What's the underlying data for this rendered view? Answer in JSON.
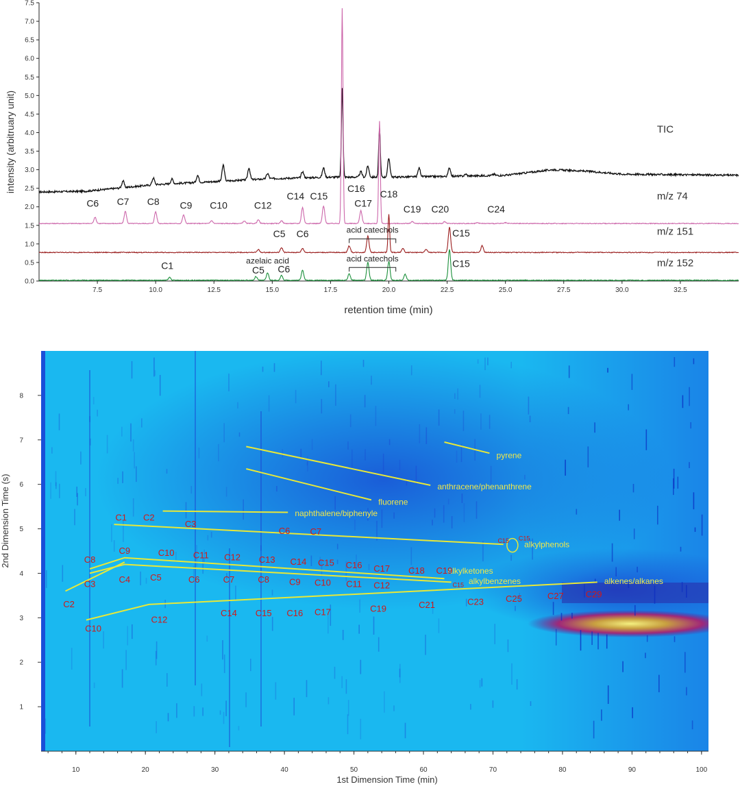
{
  "chart_data": [
    {
      "type": "line",
      "xlabel": "retention time (min)",
      "ylabel": "intensity (arbitruary unit)",
      "xlim": [
        5.0,
        35.0
      ],
      "ylim": [
        0.0,
        7.5
      ],
      "x_ticks": [
        "7.5",
        "10.0",
        "12.5",
        "15.0",
        "17.5",
        "20.0",
        "22.5",
        "25.0",
        "27.5",
        "30.0",
        "32.5"
      ],
      "x_tick_values": [
        7.5,
        10.0,
        12.5,
        15.0,
        17.5,
        20.0,
        22.5,
        25.0,
        27.5,
        30.0,
        32.5
      ],
      "y_ticks": [
        "0.0",
        "0.5",
        "1.0",
        "1.5",
        "2.0",
        "2.5",
        "3.0",
        "3.5",
        "4.0",
        "4.5",
        "5.0",
        "5.5",
        "6.0",
        "6.5",
        "7.0",
        "7.5"
      ],
      "y_tick_values": [
        0.0,
        0.5,
        1.0,
        1.5,
        2.0,
        2.5,
        3.0,
        3.5,
        4.0,
        4.5,
        5.0,
        5.5,
        6.0,
        6.5,
        7.0,
        7.5
      ],
      "grid": false,
      "series": [
        {
          "name": "TIC",
          "color": "#111111",
          "baseline": [
            [
              5.0,
              2.4
            ],
            [
              7.0,
              2.42
            ],
            [
              10.0,
              2.6
            ],
            [
              12.5,
              2.68
            ],
            [
              15.0,
              2.76
            ],
            [
              17.5,
              2.8
            ],
            [
              20.0,
              2.8
            ],
            [
              22.5,
              2.82
            ],
            [
              25.0,
              2.85
            ],
            [
              27.0,
              3.0
            ],
            [
              28.5,
              2.96
            ],
            [
              30.0,
              2.88
            ],
            [
              35.0,
              2.85
            ]
          ],
          "peaks": [
            [
              8.6,
              2.7
            ],
            [
              9.9,
              2.78
            ],
            [
              10.7,
              2.75
            ],
            [
              11.8,
              2.85
            ],
            [
              12.9,
              3.13
            ],
            [
              14.0,
              3.05
            ],
            [
              14.8,
              2.9
            ],
            [
              16.3,
              2.95
            ],
            [
              17.2,
              3.05
            ],
            [
              18.0,
              5.22
            ],
            [
              18.8,
              2.95
            ],
            [
              19.1,
              3.1
            ],
            [
              19.6,
              4.12
            ],
            [
              20.0,
              3.3
            ],
            [
              21.3,
              3.05
            ],
            [
              22.6,
              3.05
            ],
            [
              23.3,
              2.88
            ],
            [
              24.5,
              2.88
            ]
          ]
        },
        {
          "name": "m/z 74",
          "color": "#cc66aa",
          "baseline": [
            [
              5.0,
              1.55
            ],
            [
              35.0,
              1.55
            ]
          ],
          "peaks": [
            [
              7.4,
              1.72
            ],
            [
              8.7,
              1.88
            ],
            [
              10.0,
              1.87
            ],
            [
              11.2,
              1.78
            ],
            [
              12.4,
              1.63
            ],
            [
              13.8,
              1.62
            ],
            [
              14.4,
              1.65
            ],
            [
              15.4,
              1.63
            ],
            [
              16.3,
              1.98
            ],
            [
              17.2,
              2.02
            ],
            [
              18.0,
              7.35
            ],
            [
              18.8,
              1.9
            ],
            [
              19.6,
              4.32
            ],
            [
              21.0,
              1.6
            ],
            [
              22.4,
              1.6
            ],
            [
              23.8,
              1.58
            ],
            [
              25.0,
              1.57
            ]
          ]
        },
        {
          "name": "m/z 151",
          "color": "#991b1b",
          "baseline": [
            [
              5.0,
              0.77
            ],
            [
              35.0,
              0.77
            ]
          ],
          "peaks": [
            [
              14.4,
              0.85
            ],
            [
              15.4,
              0.9
            ],
            [
              16.3,
              0.88
            ],
            [
              18.3,
              0.95
            ],
            [
              19.1,
              1.22
            ],
            [
              20.0,
              1.8
            ],
            [
              20.6,
              0.88
            ],
            [
              21.6,
              0.85
            ],
            [
              22.6,
              1.45
            ],
            [
              24.0,
              0.95
            ]
          ]
        },
        {
          "name": "m/z 152",
          "color": "#1a8f3a",
          "baseline": [
            [
              5.0,
              0.02
            ],
            [
              35.0,
              0.02
            ]
          ],
          "peaks": [
            [
              10.6,
              0.1
            ],
            [
              14.3,
              0.12
            ],
            [
              14.8,
              0.22
            ],
            [
              15.4,
              0.15
            ],
            [
              16.3,
              0.3
            ],
            [
              18.3,
              0.2
            ],
            [
              19.1,
              0.5
            ],
            [
              20.0,
              0.52
            ],
            [
              20.7,
              0.18
            ],
            [
              22.6,
              0.85
            ]
          ]
        }
      ],
      "trace_labels": [
        {
          "text": "TIC",
          "x": 31.5,
          "y": 4.0
        },
        {
          "text": "m/z 74",
          "x": 31.5,
          "y": 2.2
        },
        {
          "text": "m/z 151",
          "x": 31.5,
          "y": 1.25
        },
        {
          "text": "m/z 152",
          "x": 31.5,
          "y": 0.4
        }
      ],
      "peak_labels": [
        {
          "text": "C6",
          "x": 7.3,
          "y": 2.0
        },
        {
          "text": "C7",
          "x": 8.6,
          "y": 2.05
        },
        {
          "text": "C8",
          "x": 9.9,
          "y": 2.05
        },
        {
          "text": "C9",
          "x": 11.3,
          "y": 1.95
        },
        {
          "text": "C10",
          "x": 12.7,
          "y": 1.95
        },
        {
          "text": "C12",
          "x": 14.6,
          "y": 1.95
        },
        {
          "text": "C14",
          "x": 16.0,
          "y": 2.2
        },
        {
          "text": "C15",
          "x": 17.0,
          "y": 2.2
        },
        {
          "text": "C16",
          "x": 18.6,
          "y": 2.4
        },
        {
          "text": "C17",
          "x": 18.9,
          "y": 2.0
        },
        {
          "text": "C18",
          "x": 20.0,
          "y": 2.25
        },
        {
          "text": "C19",
          "x": 21.0,
          "y": 1.85
        },
        {
          "text": "C20",
          "x": 22.2,
          "y": 1.85
        },
        {
          "text": "C24",
          "x": 24.6,
          "y": 1.85
        },
        {
          "text": "C5",
          "x": 15.3,
          "y": 1.18
        },
        {
          "text": "C6",
          "x": 16.3,
          "y": 1.18
        },
        {
          "text": "C15",
          "x": 23.1,
          "y": 1.2
        },
        {
          "text": "C1",
          "x": 10.5,
          "y": 0.32
        },
        {
          "text": "C5",
          "x": 14.4,
          "y": 0.2
        },
        {
          "text": "C6",
          "x": 15.5,
          "y": 0.23
        },
        {
          "text": "C15",
          "x": 23.1,
          "y": 0.38
        }
      ],
      "annotations": [
        {
          "text": "acid catechols",
          "x": 19.3,
          "y": 1.3,
          "bracket": [
            18.3,
            20.3
          ]
        },
        {
          "text": "azelaic acid",
          "x": 14.8,
          "y": 0.47
        },
        {
          "text": "acid catechols",
          "x": 19.3,
          "y": 0.53,
          "bracket": [
            18.3,
            20.3
          ]
        }
      ]
    },
    {
      "type": "heatmap",
      "xlabel": "1st Dimension Time (min)",
      "ylabel": "2nd Dimension Time (s)",
      "xlim": [
        5,
        101
      ],
      "ylim": [
        0,
        9
      ],
      "x_ticks": [
        "10",
        "20",
        "30",
        "40",
        "50",
        "60",
        "70",
        "80",
        "90",
        "100"
      ],
      "x_tick_values": [
        10,
        20,
        30,
        40,
        50,
        60,
        70,
        80,
        90,
        100
      ],
      "y_ticks": [
        "1",
        "2",
        "3",
        "4",
        "5",
        "6",
        "7",
        "8"
      ],
      "y_tick_values": [
        1,
        2,
        3,
        4,
        5,
        6,
        7,
        8
      ],
      "grid": false,
      "background_color": "#1ab8f0",
      "series_lines": [
        {
          "name": "pyrene",
          "points": [
            [
              63,
              6.95
            ],
            [
              69.5,
              6.7
            ]
          ],
          "label_at": [
            70.5,
            6.65
          ]
        },
        {
          "name": "anthracene/phenanthrene",
          "points": [
            [
              34.5,
              6.85
            ],
            [
              61,
              5.98
            ]
          ],
          "label_at": [
            62,
            5.95
          ]
        },
        {
          "name": "fluorene",
          "points": [
            [
              34.5,
              6.35
            ],
            [
              52.5,
              5.65
            ]
          ],
          "label_at": [
            53.5,
            5.6
          ]
        },
        {
          "name": "naphthalene/biphenyle",
          "points": [
            [
              22.5,
              5.4
            ],
            [
              40.5,
              5.37
            ]
          ],
          "label_at": [
            41.5,
            5.35
          ]
        },
        {
          "name": "alkylphenols",
          "points": [
            [
              15.5,
              5.1
            ],
            [
              71.5,
              4.65
            ]
          ],
          "label_at": [
            74.5,
            4.65
          ]
        },
        {
          "name": "alkylketones",
          "points": [
            [
              12,
              4.1
            ],
            [
              17,
              4.35
            ],
            [
              63,
              3.88
            ]
          ],
          "label_at": [
            63.5,
            4.05
          ]
        },
        {
          "name": "alkylbenzenes",
          "points": [
            [
              12,
              4.0
            ],
            [
              17,
              4.2
            ],
            [
              64,
              3.8
            ]
          ],
          "label_at": [
            66.5,
            3.82
          ]
        },
        {
          "name": "alkenes/alkanes",
          "points": [
            [
              8.5,
              3.6
            ],
            [
              17,
              4.25
            ]
          ],
          "label_at": [
            86,
            3.82
          ]
        },
        {
          "name": "alkenes/alkanes",
          "points": [
            [
              11.5,
              2.95
            ],
            [
              20.5,
              3.3
            ],
            [
              85,
              3.8
            ]
          ],
          "label_at": null
        }
      ],
      "carbon_labels": [
        {
          "text": "C1",
          "x": 16.5,
          "y": 5.25
        },
        {
          "text": "C2",
          "x": 20.5,
          "y": 5.25
        },
        {
          "text": "C3",
          "x": 26.5,
          "y": 5.1
        },
        {
          "text": "C6",
          "x": 40,
          "y": 4.95
        },
        {
          "text": "C7",
          "x": 44.5,
          "y": 4.93
        },
        {
          "text": "C15",
          "x": 71.5,
          "y": 4.75
        },
        {
          "text": "C15",
          "x": 74.5,
          "y": 4.8
        },
        {
          "text": "C8",
          "x": 12,
          "y": 4.3
        },
        {
          "text": "C9",
          "x": 17,
          "y": 4.5
        },
        {
          "text": "C10",
          "x": 23,
          "y": 4.45
        },
        {
          "text": "C11",
          "x": 28,
          "y": 4.4
        },
        {
          "text": "C12",
          "x": 32.5,
          "y": 4.35
        },
        {
          "text": "C13",
          "x": 37.5,
          "y": 4.3
        },
        {
          "text": "C14",
          "x": 42,
          "y": 4.25
        },
        {
          "text": "C15",
          "x": 46,
          "y": 4.23
        },
        {
          "text": "C16",
          "x": 50,
          "y": 4.18
        },
        {
          "text": "C17",
          "x": 54,
          "y": 4.1
        },
        {
          "text": "C18",
          "x": 59,
          "y": 4.05
        },
        {
          "text": "C19",
          "x": 63,
          "y": 4.05
        },
        {
          "text": "C3",
          "x": 12,
          "y": 3.75
        },
        {
          "text": "C4",
          "x": 17,
          "y": 3.85
        },
        {
          "text": "C5",
          "x": 21.5,
          "y": 3.9
        },
        {
          "text": "C6",
          "x": 27,
          "y": 3.85
        },
        {
          "text": "C7",
          "x": 32,
          "y": 3.85
        },
        {
          "text": "C8",
          "x": 37,
          "y": 3.85
        },
        {
          "text": "C9",
          "x": 41.5,
          "y": 3.8
        },
        {
          "text": "C10",
          "x": 45.5,
          "y": 3.78
        },
        {
          "text": "C11",
          "x": 50,
          "y": 3.75
        },
        {
          "text": "C12",
          "x": 54,
          "y": 3.72
        },
        {
          "text": "C15",
          "x": 65,
          "y": 3.75
        },
        {
          "text": "C2",
          "x": 9,
          "y": 3.3
        },
        {
          "text": "C10",
          "x": 12.5,
          "y": 2.75
        },
        {
          "text": "C12",
          "x": 22,
          "y": 2.95
        },
        {
          "text": "C14",
          "x": 32,
          "y": 3.1
        },
        {
          "text": "C15",
          "x": 37,
          "y": 3.1
        },
        {
          "text": "C16",
          "x": 41.5,
          "y": 3.1
        },
        {
          "text": "C17",
          "x": 45.5,
          "y": 3.12
        },
        {
          "text": "C19",
          "x": 53.5,
          "y": 3.2
        },
        {
          "text": "C21",
          "x": 60.5,
          "y": 3.28
        },
        {
          "text": "C23",
          "x": 67.5,
          "y": 3.35
        },
        {
          "text": "C25",
          "x": 73,
          "y": 3.42
        },
        {
          "text": "C27",
          "x": 79,
          "y": 3.48
        },
        {
          "text": "C29",
          "x": 84.5,
          "y": 3.52
        }
      ]
    }
  ]
}
